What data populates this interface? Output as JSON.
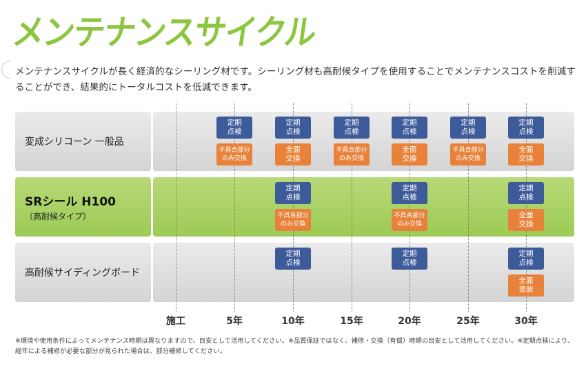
{
  "title": "メンテナンスサイクル",
  "intro": "メンテナンスサイクルが長く経済的なシーリング材です。シーリング材も高耐候タイプを使用することでメンテナンスコストを削減することができ、結果的にトータルコストを低減できます。",
  "axis": [
    "施工",
    "5年",
    "10年",
    "15年",
    "20年",
    "25年",
    "30年"
  ],
  "rows": [
    {
      "label": "変成シリコーン 一般品",
      "sublabel": "",
      "style": "gray",
      "events": [
        {
          "year": 5,
          "inspect": "定期\n点検",
          "action": "不具合部分\nのみ交換",
          "action_type": "partial"
        },
        {
          "year": 10,
          "inspect": "定期\n点検",
          "action": "全面\n交換",
          "action_type": "full"
        },
        {
          "year": 15,
          "inspect": "定期\n点検",
          "action": "不具合部分\nのみ交換",
          "action_type": "partial"
        },
        {
          "year": 20,
          "inspect": "定期\n点検",
          "action": "全面\n交換",
          "action_type": "full"
        },
        {
          "year": 25,
          "inspect": "定期\n点検",
          "action": "不具合部分\nのみ交換",
          "action_type": "partial"
        },
        {
          "year": 30,
          "inspect": "定期\n点検",
          "action": "全面\n交換",
          "action_type": "full"
        }
      ]
    },
    {
      "label": "SRシール H100",
      "sublabel": "（高耐候タイプ）",
      "style": "green",
      "events": [
        {
          "year": 10,
          "inspect": "定期\n点検",
          "action": "不具合部分\nのみ交換",
          "action_type": "partial"
        },
        {
          "year": 20,
          "inspect": "定期\n点検",
          "action": "不具合部分\nのみ交換",
          "action_type": "partial"
        },
        {
          "year": 30,
          "inspect": "定期\n点検",
          "action": "全面\n交換",
          "action_type": "full"
        }
      ]
    },
    {
      "label": "高耐候サイディングボード",
      "sublabel": "",
      "style": "gray",
      "events": [
        {
          "year": 10,
          "inspect": "定期\n点検",
          "action": "",
          "action_type": ""
        },
        {
          "year": 20,
          "inspect": "定期\n点検",
          "action": "",
          "action_type": ""
        },
        {
          "year": 30,
          "inspect": "定期\n点検",
          "action": "全面\n塗装",
          "action_type": "full"
        }
      ]
    }
  ],
  "footnote": "※環境や使用条件によってメンテナンス時期は異なりますので、目安として活用してください。※品質保証ではなく、補修・交換（有償）時期の目安として活用してください。※定期点検により、経年による補修が必要な部分が見られた場合は、部分補修してください。",
  "colors": {
    "title": "#8cc63f",
    "inspect": "#3d5a99",
    "action": "#e8823a",
    "highlight_row": "#a6d05f"
  }
}
